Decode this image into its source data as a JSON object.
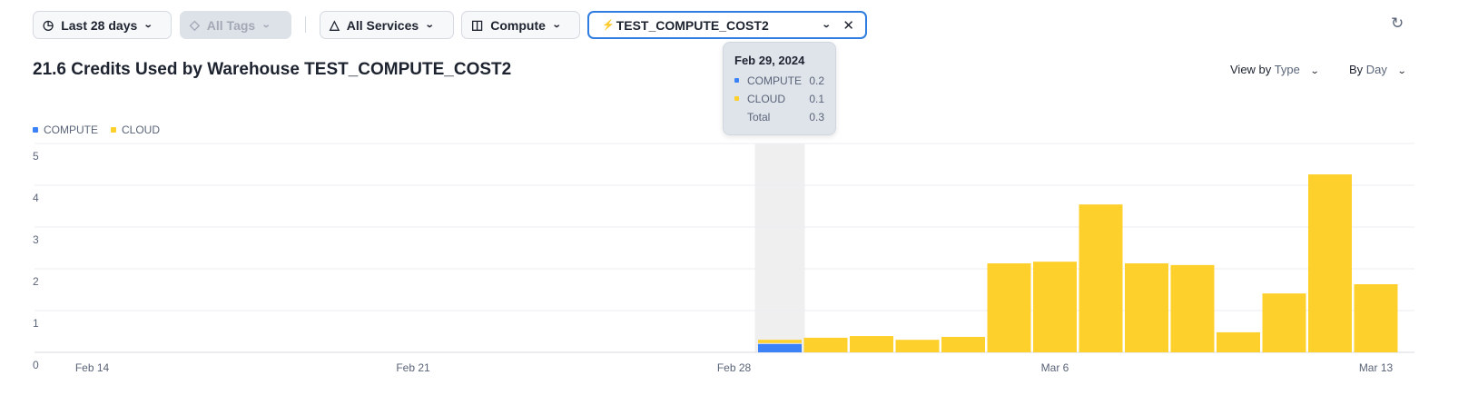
{
  "filters": {
    "date_range": {
      "label": "Last 28 days",
      "icon": "clock-icon"
    },
    "tags": {
      "label": "All Tags",
      "icon": "tag-icon",
      "disabled": true
    },
    "services": {
      "label": "All Services",
      "icon": "services-icon"
    },
    "service_type": {
      "label": "Compute",
      "icon": "database-icon"
    },
    "warehouse": {
      "label": "TEST_COMPUTE_COST2",
      "icon": "warehouse-icon",
      "clear_icon": "close-icon"
    }
  },
  "refresh_icon": "refresh-icon",
  "header": {
    "title": "21.6 Credits Used by Warehouse TEST_COMPUTE_COST2"
  },
  "controls": {
    "view_by_prefix": "View by",
    "view_by_value": "Type",
    "by_prefix": "By",
    "by_value": "Day"
  },
  "colors": {
    "compute": "#3b82f6",
    "cloud": "#fdd02c",
    "accent": "#2f7de1"
  },
  "tooltip": {
    "date": "Feb 29, 2024",
    "rows": [
      {
        "label": "COMPUTE",
        "value": "0.2"
      },
      {
        "label": "CLOUD",
        "value": "0.1"
      },
      {
        "label": "Total",
        "value": "0.3"
      }
    ]
  },
  "chart_data": {
    "type": "bar",
    "stacked": true,
    "legend": [
      "COMPUTE",
      "CLOUD"
    ],
    "legend_position": "top-left",
    "categories": [
      "Feb 29",
      "Mar 1",
      "Mar 2",
      "Mar 3",
      "Mar 4",
      "Mar 5",
      "Mar 6",
      "Mar 7",
      "Mar 8",
      "Mar 9",
      "Mar 10",
      "Mar 11",
      "Mar 12",
      "Mar 13"
    ],
    "series": [
      {
        "name": "COMPUTE",
        "values": [
          0.2,
          0,
          0,
          0,
          0,
          0,
          0,
          0,
          0,
          0,
          0,
          0,
          0,
          0
        ]
      },
      {
        "name": "CLOUD",
        "values": [
          0.1,
          0.35,
          0.39,
          0.3,
          0.37,
          2.13,
          2.17,
          3.54,
          2.13,
          2.09,
          0.48,
          1.41,
          4.26,
          1.63
        ]
      }
    ],
    "x_ticks": [
      "Feb 14",
      "Feb 21",
      "Feb 28",
      "Mar 6",
      "Mar 13"
    ],
    "y_ticks": [
      "0",
      "1",
      "2",
      "3",
      "4",
      "5"
    ],
    "ylim": [
      0,
      5
    ],
    "grid": true,
    "highlighted": "Feb 29"
  }
}
